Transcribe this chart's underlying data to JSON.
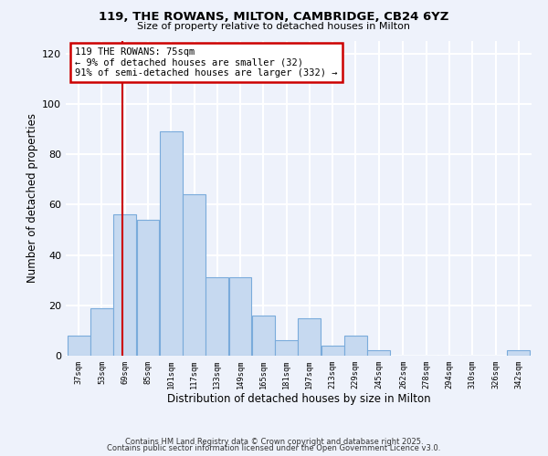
{
  "title": "119, THE ROWANS, MILTON, CAMBRIDGE, CB24 6YZ",
  "subtitle": "Size of property relative to detached houses in Milton",
  "xlabel": "Distribution of detached houses by size in Milton",
  "ylabel": "Number of detached properties",
  "bar_color": "#c6d9f0",
  "bar_edge_color": "#7aabdb",
  "vline_color": "#cc0000",
  "vline_x": 75,
  "annotation_text": "119 THE ROWANS: 75sqm\n← 9% of detached houses are smaller (32)\n91% of semi-detached houses are larger (332) →",
  "annotation_box_color": "white",
  "annotation_box_edge": "#cc0000",
  "bin_edges": [
    37,
    53,
    69,
    85,
    101,
    117,
    133,
    149,
    165,
    181,
    197,
    213,
    229,
    245,
    262,
    278,
    294,
    310,
    326,
    342,
    358
  ],
  "bin_counts": [
    8,
    19,
    56,
    54,
    89,
    64,
    31,
    31,
    16,
    6,
    15,
    4,
    8,
    2,
    0,
    0,
    0,
    0,
    0,
    2
  ],
  "ylim": [
    0,
    125
  ],
  "yticks": [
    0,
    20,
    40,
    60,
    80,
    100,
    120
  ],
  "footer_line1": "Contains HM Land Registry data © Crown copyright and database right 2025.",
  "footer_line2": "Contains public sector information licensed under the Open Government Licence v3.0.",
  "bg_color": "#eef2fb",
  "grid_color": "white"
}
